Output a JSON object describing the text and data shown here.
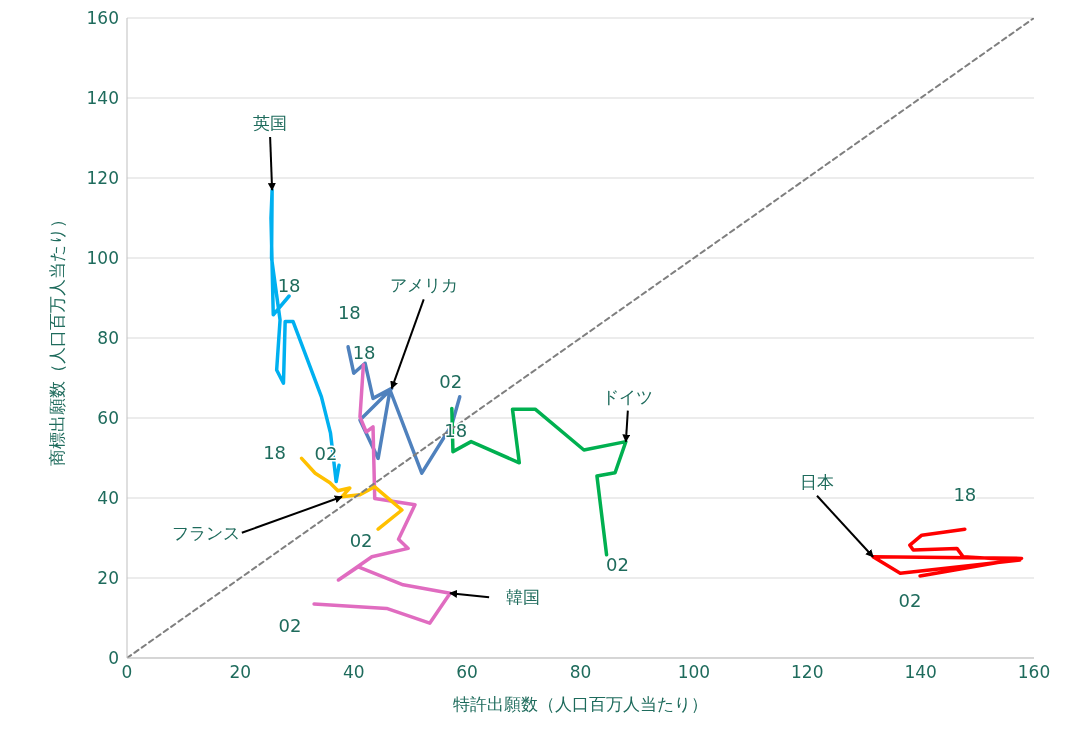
{
  "chart_data": {
    "type": "line",
    "xlabel": "特許出願数（人口百万人当たり）",
    "ylabel": "商標出願数（人口百万人当たり）",
    "xlim": [
      0,
      160
    ],
    "ylim": [
      0,
      160
    ],
    "xticks": [
      0,
      20,
      40,
      60,
      80,
      100,
      120,
      140,
      160
    ],
    "yticks": [
      0,
      20,
      40,
      60,
      80,
      100,
      120,
      140,
      160
    ],
    "grid": "y",
    "legend": false,
    "series": [
      {
        "name": "英国",
        "color": "#00b0f0",
        "x": [
          37.4,
          36.9,
          35.9,
          34.3,
          29.3,
          27.9,
          27.6,
          26.4,
          27.0,
          25.5,
          25.6,
          25.4,
          25.8,
          28.6
        ],
        "values": [
          48.2,
          44.1,
          56.2,
          65.3,
          84.1,
          84.1,
          68.7,
          72,
          84.5,
          100,
          117,
          110,
          85.8,
          90.5
        ]
      },
      {
        "name": "アメリカ",
        "color": "#4f81bd",
        "x": [
          58.7,
          57.3,
          52.0,
          46.4,
          44.3,
          41.1,
          46.7,
          43.4,
          42.0,
          40.0,
          39.0
        ],
        "values": [
          65.3,
          58.3,
          46.2,
          67,
          49.9,
          59.5,
          67.4,
          64.9,
          73.7,
          71.2,
          77.8
        ]
      },
      {
        "name": "ドイツ",
        "color": "#00b050",
        "x": [
          84.6,
          82.9,
          86.1,
          88.0,
          80.6,
          72.0,
          68.0,
          69.2,
          60.7,
          57.5,
          57.3
        ],
        "values": [
          25.8,
          45.5,
          46.3,
          54.1,
          52,
          62.2,
          62.2,
          48.8,
          54.1,
          51.6,
          62.4
        ]
      },
      {
        "name": "韓国",
        "color": "#e06cc0",
        "x": [
          33.0,
          45.8,
          53.4,
          57.0,
          48.7,
          40.8,
          37.3,
          43.2,
          49.6,
          47.9,
          50.8,
          43.7,
          43.4,
          42.2,
          41.1,
          41.7
        ],
        "values": [
          13.5,
          12.4,
          8.7,
          16.2,
          18.3,
          22.8,
          19.5,
          25.3,
          27.4,
          29.7,
          38.3,
          39.9,
          57.8,
          56.5,
          60.3,
          73.3
        ]
      },
      {
        "name": "フランス",
        "color": "#ffc000",
        "x": [
          44.3,
          48.5,
          43.7,
          41.1,
          37.9,
          39.3,
          37.2,
          35.8,
          33.2,
          30.8
        ],
        "values": [
          32.2,
          37,
          42.8,
          40.8,
          40.3,
          42.5,
          41.8,
          43.8,
          46.2,
          49.9
        ]
      },
      {
        "name": "日本",
        "color": "#ff0000",
        "x": [
          139.9,
          157.8,
          131.6,
          136.4,
          157.5,
          147.5,
          146.4,
          138.7,
          138.1,
          140.2,
          147.8
        ],
        "values": [
          20.5,
          24.9,
          25.3,
          21.2,
          24.5,
          25.3,
          27.4,
          27,
          28.2,
          30.7,
          32.2
        ]
      },
      {
        "color": "#7f7f7f",
        "line_style": "dashed",
        "x": [
          0,
          160
        ],
        "values": [
          0,
          160
        ]
      }
    ],
    "annotations": [
      {
        "text": "18",
        "x": 28.6,
        "y": 90.5
      },
      {
        "text": "02",
        "x": 37.4,
        "y": 48.2
      },
      {
        "text": "18",
        "x": 39.0,
        "y": 77.8
      },
      {
        "text": "02",
        "x": 58.7,
        "y": 65.3
      },
      {
        "text": "18",
        "x": 41.7,
        "y": 73.3
      },
      {
        "text": "18",
        "x": 57.3,
        "y": 62.4
      },
      {
        "text": "02",
        "x": 84.6,
        "y": 25.8
      },
      {
        "text": "18",
        "x": 30.8,
        "y": 49.9
      },
      {
        "text": "02",
        "x": 44.3,
        "y": 32.2
      },
      {
        "text": "02",
        "x": 33.0,
        "y": 13.5
      },
      {
        "text": "18",
        "x": 147.8,
        "y": 32.2
      },
      {
        "text": "02",
        "x": 139.9,
        "y": 20.5
      }
    ]
  }
}
